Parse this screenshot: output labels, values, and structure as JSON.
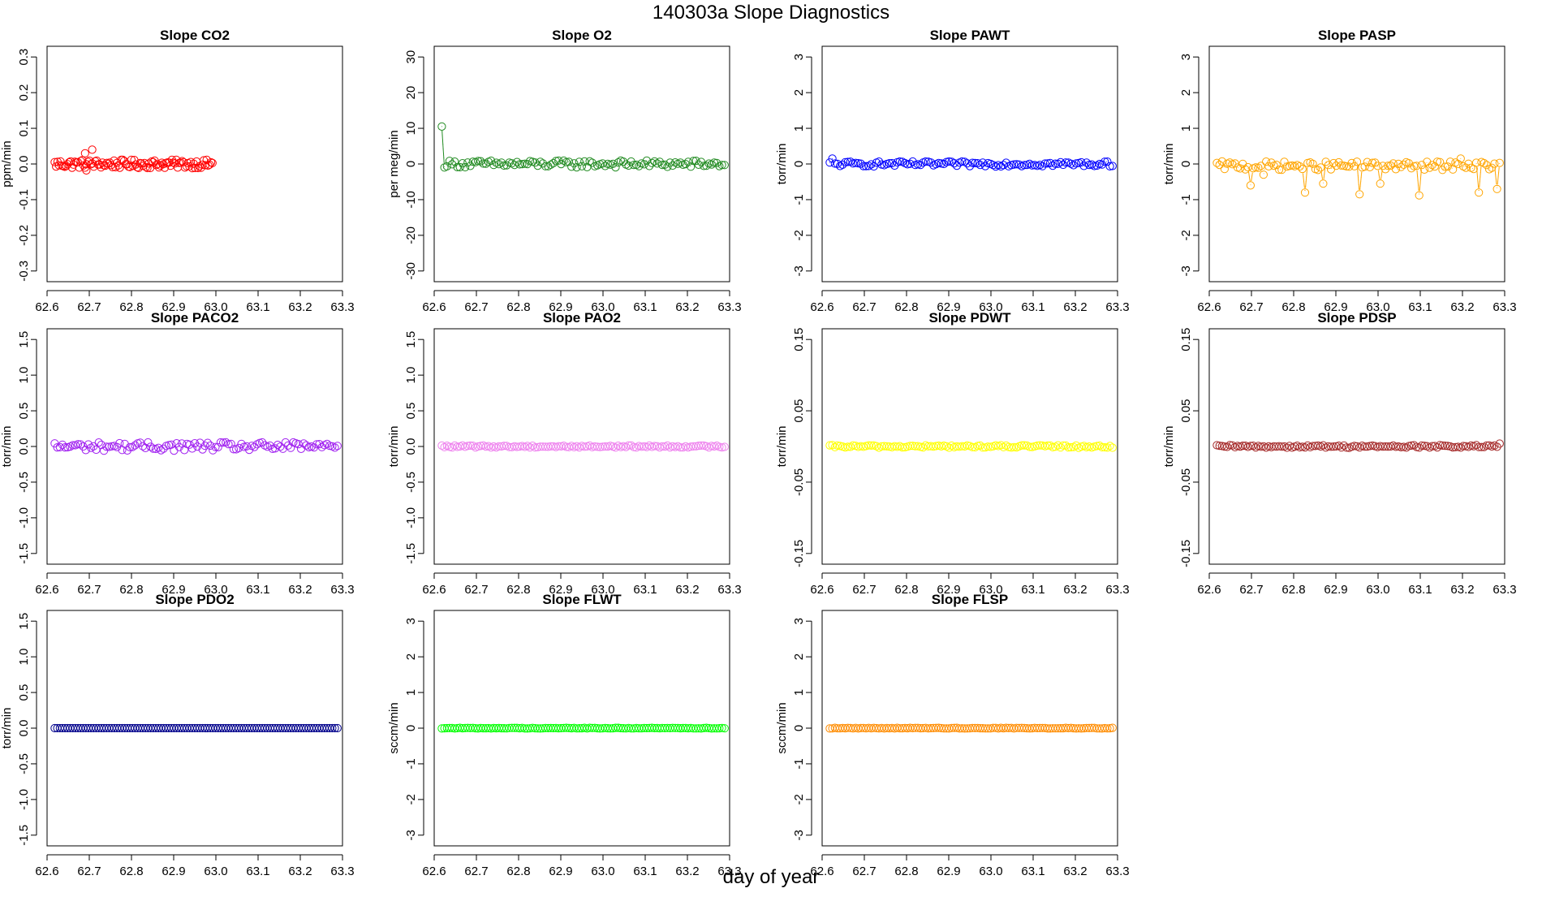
{
  "figure": {
    "title": "140303a   Slope Diagnostics",
    "xlabel": "day of year"
  },
  "chart_data": [
    {
      "type": "scatter",
      "title": "Slope CO2",
      "ylabel": "ppm/min",
      "color": "#ff0000",
      "xlim": [
        62.6,
        63.3
      ],
      "ylim": [
        -0.33,
        0.33
      ],
      "xticks": [
        "62.6",
        "62.7",
        "62.8",
        "62.9",
        "63.0",
        "63.1",
        "63.2",
        "63.3"
      ],
      "yticks": [
        "-0.3",
        "-0.2",
        "-0.1",
        "0.0",
        "0.1",
        "0.2",
        "0.3"
      ],
      "x_range": [
        62.618,
        62.992
      ],
      "n": 110,
      "base": 0.0,
      "amp": 0.012,
      "lines": false,
      "fixed": [],
      "annotations": [
        {
          "x": 62.69,
          "y": 0.03
        },
        {
          "x": 62.707,
          "y": 0.04
        },
        {
          "x": 62.693,
          "y": -0.018
        }
      ]
    },
    {
      "type": "scatter",
      "title": "Slope O2",
      "ylabel": "per meg/min",
      "color": "#228b22",
      "xlim": [
        62.6,
        63.3
      ],
      "ylim": [
        -33,
        33
      ],
      "xticks": [
        "62.6",
        "62.7",
        "62.8",
        "62.9",
        "63.0",
        "63.1",
        "63.2",
        "63.3"
      ],
      "yticks": [
        "-30",
        "-20",
        "-10",
        "0",
        "10",
        "20",
        "30"
      ],
      "x_range": [
        62.618,
        63.288
      ],
      "n": 110,
      "base": 0.0,
      "amp": 1.0,
      "lines": true,
      "fixed": [
        {
          "x": 62.618,
          "y": 10.5
        }
      ]
    },
    {
      "type": "scatter",
      "title": "Slope PAWT",
      "ylabel": "torr/min",
      "color": "#0000ff",
      "xlim": [
        62.6,
        63.3
      ],
      "ylim": [
        -3.3,
        3.3
      ],
      "xticks": [
        "62.6",
        "62.7",
        "62.8",
        "62.9",
        "63.0",
        "63.1",
        "63.2",
        "63.3"
      ],
      "yticks": [
        "-3",
        "-2",
        "-1",
        "0",
        "1",
        "2",
        "3"
      ],
      "x_range": [
        62.618,
        63.288
      ],
      "n": 110,
      "base": 0.0,
      "amp": 0.07,
      "lines": true,
      "fixed": [
        {
          "x": 62.623,
          "y": 0.15
        }
      ]
    },
    {
      "type": "scatter",
      "title": "Slope PASP",
      "ylabel": "torr/min",
      "color": "#ffa500",
      "xlim": [
        62.6,
        63.3
      ],
      "ylim": [
        -3.3,
        3.3
      ],
      "xticks": [
        "62.6",
        "62.7",
        "62.8",
        "62.9",
        "63.0",
        "63.1",
        "63.2",
        "63.3"
      ],
      "yticks": [
        "-3",
        "-2",
        "-1",
        "0",
        "1",
        "2",
        "3"
      ],
      "x_range": [
        62.618,
        63.288
      ],
      "n": 110,
      "base": -0.05,
      "amp": 0.12,
      "lines": true,
      "fixed": [
        {
          "x": 62.698,
          "y": -0.6
        },
        {
          "x": 62.825,
          "y": -0.8
        },
        {
          "x": 62.87,
          "y": -0.55
        },
        {
          "x": 62.957,
          "y": -0.85
        },
        {
          "x": 63.008,
          "y": -0.55
        },
        {
          "x": 63.097,
          "y": -0.88
        },
        {
          "x": 63.237,
          "y": -0.8
        },
        {
          "x": 63.28,
          "y": -0.7
        },
        {
          "x": 63.195,
          "y": 0.15
        },
        {
          "x": 62.727,
          "y": -0.3
        }
      ]
    },
    {
      "type": "scatter",
      "title": "Slope PACO2",
      "ylabel": "torr/min",
      "color": "#a020f0",
      "xlim": [
        62.6,
        63.3
      ],
      "ylim": [
        -1.65,
        1.65
      ],
      "xticks": [
        "62.6",
        "62.7",
        "62.8",
        "62.9",
        "63.0",
        "63.1",
        "63.2",
        "63.3"
      ],
      "yticks": [
        "-1.5",
        "-1.0",
        "-0.5",
        "0.0",
        "0.5",
        "1.0",
        "1.5"
      ],
      "x_range": [
        62.618,
        63.288
      ],
      "n": 110,
      "base": 0.0,
      "amp": 0.06,
      "lines": false,
      "fixed": []
    },
    {
      "type": "scatter",
      "title": "Slope PAO2",
      "ylabel": "torr/min",
      "color": "#ee82ee",
      "xlim": [
        62.6,
        63.3
      ],
      "ylim": [
        -1.65,
        1.65
      ],
      "xticks": [
        "62.6",
        "62.7",
        "62.8",
        "62.9",
        "63.0",
        "63.1",
        "63.2",
        "63.3"
      ],
      "yticks": [
        "-1.5",
        "-1.0",
        "-0.5",
        "0.0",
        "0.5",
        "1.0",
        "1.5"
      ],
      "x_range": [
        62.618,
        63.288
      ],
      "n": 110,
      "base": 0.0,
      "amp": 0.015,
      "lines": false,
      "fixed": []
    },
    {
      "type": "scatter",
      "title": "Slope PDWT",
      "ylabel": "torr/min",
      "color": "#ffff00",
      "xlim": [
        62.6,
        63.3
      ],
      "ylim": [
        -0.165,
        0.165
      ],
      "xticks": [
        "62.6",
        "62.7",
        "62.8",
        "62.9",
        "63.0",
        "63.1",
        "63.2",
        "63.3"
      ],
      "yticks": [
        "-0.15",
        "-0.05",
        "0.05",
        "0.15"
      ],
      "x_range": [
        62.618,
        63.288
      ],
      "n": 110,
      "base": 0.0,
      "amp": 0.0018,
      "lines": false,
      "fixed": []
    },
    {
      "type": "scatter",
      "title": "Slope PDSP",
      "ylabel": "torr/min",
      "color": "#a52a2a",
      "xlim": [
        62.6,
        63.3
      ],
      "ylim": [
        -0.165,
        0.165
      ],
      "xticks": [
        "62.6",
        "62.7",
        "62.8",
        "62.9",
        "63.0",
        "63.1",
        "63.2",
        "63.3"
      ],
      "yticks": [
        "-0.15",
        "-0.05",
        "0.05",
        "0.15"
      ],
      "x_range": [
        62.618,
        63.288
      ],
      "n": 110,
      "base": 0.0,
      "amp": 0.0018,
      "lines": true,
      "fixed": [
        {
          "x": 63.288,
          "y": 0.004
        }
      ]
    },
    {
      "type": "scatter",
      "title": "Slope PDO2",
      "ylabel": "torr/min",
      "color": "#00008b",
      "xlim": [
        62.6,
        63.3
      ],
      "ylim": [
        -1.65,
        1.65
      ],
      "xticks": [
        "62.6",
        "62.7",
        "62.8",
        "62.9",
        "63.0",
        "63.1",
        "63.2",
        "63.3"
      ],
      "yticks": [
        "-1.5",
        "-1.0",
        "-0.5",
        "0.0",
        "0.5",
        "1.0",
        "1.5"
      ],
      "x_range": [
        62.618,
        63.288
      ],
      "n": 110,
      "base": 0.0,
      "amp": 0.0,
      "lines": false,
      "fixed": []
    },
    {
      "type": "scatter",
      "title": "Slope FLWT",
      "ylabel": "sccm/min",
      "color": "#00ff00",
      "xlim": [
        62.6,
        63.3
      ],
      "ylim": [
        -3.3,
        3.3
      ],
      "xticks": [
        "62.6",
        "62.7",
        "62.8",
        "62.9",
        "63.0",
        "63.1",
        "63.2",
        "63.3"
      ],
      "yticks": [
        "-3",
        "-2",
        "-1",
        "0",
        "1",
        "2",
        "3"
      ],
      "x_range": [
        62.618,
        63.288
      ],
      "n": 110,
      "base": 0.0,
      "amp": 0.01,
      "lines": false,
      "fixed": []
    },
    {
      "type": "scatter",
      "title": "Slope FLSP",
      "ylabel": "sccm/min",
      "color": "#ff8c00",
      "xlim": [
        62.6,
        63.3
      ],
      "ylim": [
        -3.3,
        3.3
      ],
      "xticks": [
        "62.6",
        "62.7",
        "62.8",
        "62.9",
        "63.0",
        "63.1",
        "63.2",
        "63.3"
      ],
      "yticks": [
        "-3",
        "-2",
        "-1",
        "0",
        "1",
        "2",
        "3"
      ],
      "x_range": [
        62.618,
        63.288
      ],
      "n": 110,
      "base": 0.0,
      "amp": 0.01,
      "lines": false,
      "fixed": []
    }
  ]
}
